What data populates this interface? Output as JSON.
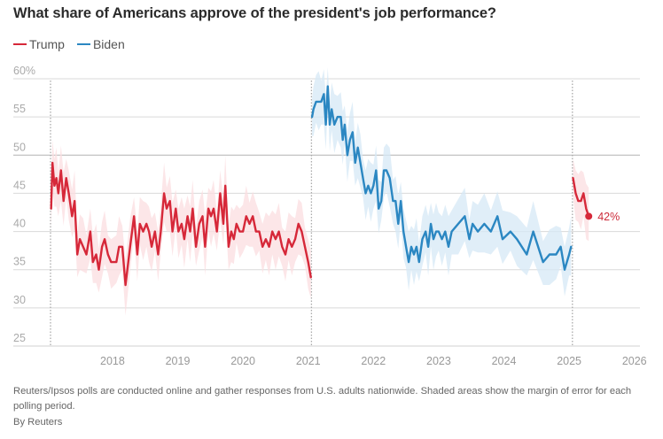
{
  "chart_data": {
    "type": "line",
    "title": "What share of Americans approve of the president's job performance?",
    "xlabel": "",
    "ylabel": "",
    "ylim": [
      25,
      60
    ],
    "xlim": [
      2017.05,
      2026.05
    ],
    "y_ticks": [
      {
        "value": 60,
        "label": "60%"
      },
      {
        "value": 55,
        "label": "55"
      },
      {
        "value": 50,
        "label": "50"
      },
      {
        "value": 45,
        "label": "45"
      },
      {
        "value": 40,
        "label": "40"
      },
      {
        "value": 35,
        "label": "35"
      },
      {
        "value": 30,
        "label": "30"
      },
      {
        "value": 25,
        "label": "25"
      }
    ],
    "x_ticks": [
      {
        "value": 2018,
        "label": "2018"
      },
      {
        "value": 2019,
        "label": "2019"
      },
      {
        "value": 2020,
        "label": "2020"
      },
      {
        "value": 2021,
        "label": "2021"
      },
      {
        "value": 2022,
        "label": "2022"
      },
      {
        "value": 2023,
        "label": "2023"
      },
      {
        "value": 2024,
        "label": "2024"
      },
      {
        "value": 2025,
        "label": "2025"
      },
      {
        "value": 2026,
        "label": "2026"
      }
    ],
    "grid": true,
    "inauguration_markers": [
      2017.05,
      2021.05,
      2025.05
    ],
    "legend": {
      "placement": "top-left",
      "entries": [
        {
          "name": "Trump",
          "color": "#d62839"
        },
        {
          "name": "Biden",
          "color": "#2b87c2"
        }
      ]
    },
    "margin_of_error": 2.5,
    "series": [
      {
        "name": "Trump",
        "term": "first",
        "color": "#d62839",
        "points": [
          [
            2017.06,
            43
          ],
          [
            2017.08,
            49
          ],
          [
            2017.11,
            46
          ],
          [
            2017.14,
            47
          ],
          [
            2017.17,
            45
          ],
          [
            2017.21,
            48
          ],
          [
            2017.25,
            44
          ],
          [
            2017.29,
            47
          ],
          [
            2017.33,
            45
          ],
          [
            2017.38,
            42
          ],
          [
            2017.42,
            44
          ],
          [
            2017.46,
            37
          ],
          [
            2017.5,
            39
          ],
          [
            2017.55,
            38
          ],
          [
            2017.6,
            37
          ],
          [
            2017.66,
            40
          ],
          [
            2017.7,
            36
          ],
          [
            2017.75,
            37
          ],
          [
            2017.79,
            35
          ],
          [
            2017.84,
            38
          ],
          [
            2017.88,
            39
          ],
          [
            2017.93,
            37
          ],
          [
            2017.98,
            36
          ],
          [
            2018.06,
            36
          ],
          [
            2018.1,
            38
          ],
          [
            2018.15,
            38
          ],
          [
            2018.2,
            33
          ],
          [
            2018.27,
            38
          ],
          [
            2018.33,
            42
          ],
          [
            2018.38,
            37
          ],
          [
            2018.42,
            41
          ],
          [
            2018.47,
            40
          ],
          [
            2018.52,
            41
          ],
          [
            2018.56,
            40
          ],
          [
            2018.6,
            38
          ],
          [
            2018.65,
            40
          ],
          [
            2018.7,
            37
          ],
          [
            2018.74,
            40
          ],
          [
            2018.79,
            45
          ],
          [
            2018.83,
            43
          ],
          [
            2018.88,
            44
          ],
          [
            2018.92,
            40
          ],
          [
            2018.97,
            43
          ],
          [
            2019.01,
            40
          ],
          [
            2019.06,
            41
          ],
          [
            2019.1,
            39
          ],
          [
            2019.15,
            42
          ],
          [
            2019.19,
            40
          ],
          [
            2019.23,
            43
          ],
          [
            2019.28,
            38
          ],
          [
            2019.33,
            41
          ],
          [
            2019.38,
            42
          ],
          [
            2019.42,
            38
          ],
          [
            2019.47,
            43
          ],
          [
            2019.51,
            42
          ],
          [
            2019.55,
            43
          ],
          [
            2019.6,
            40
          ],
          [
            2019.65,
            45
          ],
          [
            2019.7,
            41
          ],
          [
            2019.73,
            46
          ],
          [
            2019.78,
            38
          ],
          [
            2019.82,
            40
          ],
          [
            2019.86,
            39
          ],
          [
            2019.9,
            41
          ],
          [
            2019.95,
            40
          ],
          [
            2020.0,
            40
          ],
          [
            2020.05,
            42
          ],
          [
            2020.1,
            41
          ],
          [
            2020.15,
            42
          ],
          [
            2020.2,
            40
          ],
          [
            2020.25,
            40
          ],
          [
            2020.3,
            38
          ],
          [
            2020.35,
            39
          ],
          [
            2020.4,
            38
          ],
          [
            2020.45,
            40
          ],
          [
            2020.5,
            39
          ],
          [
            2020.55,
            40
          ],
          [
            2020.6,
            38
          ],
          [
            2020.65,
            37
          ],
          [
            2020.7,
            39
          ],
          [
            2020.75,
            38
          ],
          [
            2020.8,
            39
          ],
          [
            2020.85,
            41
          ],
          [
            2020.9,
            40
          ],
          [
            2020.95,
            38
          ],
          [
            2021.0,
            36
          ],
          [
            2021.04,
            34
          ]
        ]
      },
      {
        "name": "Biden",
        "term": "single",
        "color": "#2b87c2",
        "points": [
          [
            2021.06,
            55
          ],
          [
            2021.08,
            56
          ],
          [
            2021.12,
            57
          ],
          [
            2021.16,
            57
          ],
          [
            2021.2,
            57
          ],
          [
            2021.24,
            58
          ],
          [
            2021.27,
            54
          ],
          [
            2021.3,
            59
          ],
          [
            2021.33,
            54
          ],
          [
            2021.36,
            56
          ],
          [
            2021.4,
            54
          ],
          [
            2021.45,
            55
          ],
          [
            2021.5,
            55
          ],
          [
            2021.53,
            52
          ],
          [
            2021.56,
            54
          ],
          [
            2021.6,
            50
          ],
          [
            2021.64,
            52
          ],
          [
            2021.68,
            53
          ],
          [
            2021.72,
            49
          ],
          [
            2021.76,
            51
          ],
          [
            2021.8,
            49
          ],
          [
            2021.84,
            47
          ],
          [
            2021.88,
            45
          ],
          [
            2021.92,
            46
          ],
          [
            2021.96,
            45
          ],
          [
            2022.0,
            46
          ],
          [
            2022.04,
            48
          ],
          [
            2022.08,
            43
          ],
          [
            2022.12,
            44
          ],
          [
            2022.16,
            48
          ],
          [
            2022.2,
            48
          ],
          [
            2022.25,
            47
          ],
          [
            2022.3,
            44
          ],
          [
            2022.34,
            44
          ],
          [
            2022.38,
            41
          ],
          [
            2022.42,
            44
          ],
          [
            2022.46,
            40
          ],
          [
            2022.5,
            38
          ],
          [
            2022.54,
            36
          ],
          [
            2022.58,
            38
          ],
          [
            2022.62,
            37
          ],
          [
            2022.66,
            38
          ],
          [
            2022.7,
            36
          ],
          [
            2022.75,
            39
          ],
          [
            2022.8,
            40
          ],
          [
            2022.84,
            38
          ],
          [
            2022.88,
            41
          ],
          [
            2022.92,
            39
          ],
          [
            2022.96,
            40
          ],
          [
            2023.0,
            40
          ],
          [
            2023.05,
            39
          ],
          [
            2023.1,
            40
          ],
          [
            2023.15,
            38
          ],
          [
            2023.2,
            40
          ],
          [
            2023.3,
            41
          ],
          [
            2023.4,
            42
          ],
          [
            2023.47,
            39
          ],
          [
            2023.52,
            41
          ],
          [
            2023.6,
            40
          ],
          [
            2023.7,
            41
          ],
          [
            2023.8,
            40
          ],
          [
            2023.9,
            42
          ],
          [
            2023.98,
            39
          ],
          [
            2024.1,
            40
          ],
          [
            2024.2,
            39
          ],
          [
            2024.35,
            37
          ],
          [
            2024.45,
            40
          ],
          [
            2024.6,
            36
          ],
          [
            2024.7,
            37
          ],
          [
            2024.8,
            37
          ],
          [
            2024.87,
            38
          ],
          [
            2024.93,
            35
          ],
          [
            2025.0,
            37
          ],
          [
            2025.03,
            38
          ]
        ]
      },
      {
        "name": "Trump",
        "term": "second",
        "color": "#d62839",
        "points": [
          [
            2025.06,
            47
          ],
          [
            2025.1,
            45
          ],
          [
            2025.14,
            44
          ],
          [
            2025.18,
            44
          ],
          [
            2025.22,
            45
          ],
          [
            2025.26,
            43
          ],
          [
            2025.3,
            42
          ]
        ]
      }
    ],
    "annotations": [
      {
        "text": "42%",
        "series": "Trump",
        "x": 2025.3,
        "y": 42
      }
    ]
  },
  "footer": {
    "note": "Reuters/Ipsos polls are conducted online and gather responses from U.S. adults nationwide. Shaded areas show the margin of error for each polling period.",
    "byline": "By Reuters"
  }
}
